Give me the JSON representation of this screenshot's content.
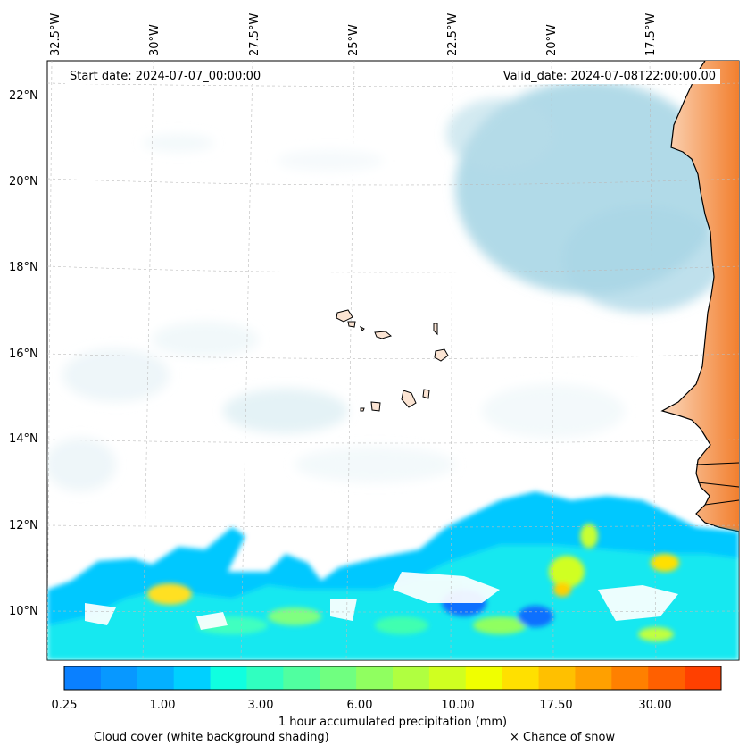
{
  "header": {
    "start_date": "Start date: 2024-07-07_00:00:00",
    "valid_date": "Valid_date: 2024-07-08T22:00:00.00"
  },
  "map": {
    "lon_labels": [
      "32.5°W",
      "30°W",
      "27.5°W",
      "25°W",
      "22.5°W",
      "20°W",
      "17.5°W"
    ],
    "lat_labels": [
      "22°N",
      "20°N",
      "18°N",
      "16°N",
      "14°N",
      "12°N",
      "10°N"
    ],
    "ocean_color": "#ffffff",
    "land_color": "#f28a3c",
    "cloud_color": "#a9d6e5"
  },
  "colorbar": {
    "title": "1 hour accumulated precipitation (mm)",
    "tick_labels": [
      "0.25",
      "1.00",
      "3.00",
      "6.00",
      "10.00",
      "17.50",
      "30.00"
    ],
    "colors": [
      "#0a80ff",
      "#0898ff",
      "#04b0ff",
      "#00d0ff",
      "#10ffe0",
      "#30ffc0",
      "#50ffa0",
      "#70ff80",
      "#90ff60",
      "#b0ff40",
      "#d0ff20",
      "#f0ff00",
      "#ffe000",
      "#ffc000",
      "#ffa000",
      "#ff8000",
      "#ff6000",
      "#ff4000"
    ]
  },
  "footer": {
    "cloud_note": "Cloud cover (white background shading)",
    "snow_note": "× Chance of snow"
  }
}
